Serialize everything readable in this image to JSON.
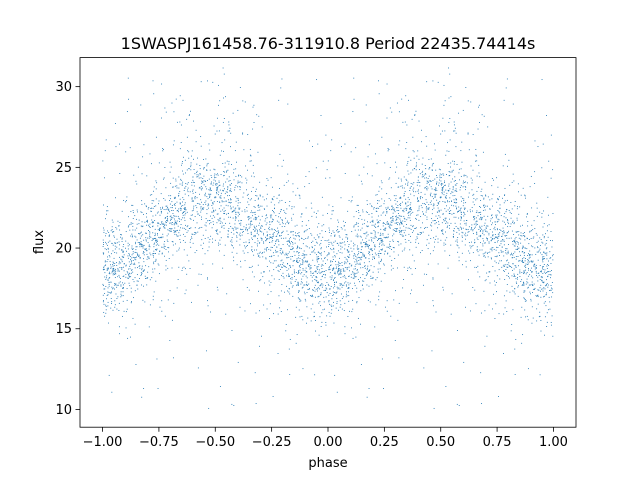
{
  "chart_data": {
    "type": "scatter",
    "title": "1SWASPJ161458.76-311910.8 Period 22435.74414s",
    "xlabel": "phase",
    "ylabel": "flux",
    "xlim": [
      -1.1,
      1.1
    ],
    "ylim": [
      8.9,
      31.8
    ],
    "xticks": [
      -1.0,
      -0.75,
      -0.5,
      -0.25,
      0.0,
      0.25,
      0.5,
      0.75,
      1.0
    ],
    "xtick_labels": [
      "−1.00",
      "−0.75",
      "−0.50",
      "−0.25",
      "0.00",
      "0.25",
      "0.50",
      "0.75",
      "1.00"
    ],
    "yticks": [
      10,
      15,
      20,
      25,
      30
    ],
    "ytick_labels": [
      "10",
      "15",
      "20",
      "25",
      "30"
    ],
    "grid": false,
    "marker_color": "#1f77b4",
    "series": [
      {
        "phase_folded": true,
        "mean_curve": {
          "x": [
            -1.0,
            -0.9,
            -0.8,
            -0.7,
            -0.6,
            -0.5,
            -0.4,
            -0.3,
            -0.2,
            -0.1,
            0.0,
            0.1,
            0.2,
            0.3,
            0.4,
            0.5,
            0.6,
            0.7,
            0.8,
            0.9,
            1.0
          ],
          "y": [
            18.5,
            19.0,
            20.3,
            21.8,
            22.7,
            22.9,
            22.4,
            21.2,
            19.8,
            18.8,
            18.5,
            19.0,
            20.3,
            21.8,
            22.7,
            22.9,
            22.4,
            21.2,
            19.8,
            18.8,
            18.5
          ]
        },
        "scatter_sigma": 1.3,
        "outlier_range": [
          10,
          31
        ]
      }
    ]
  }
}
